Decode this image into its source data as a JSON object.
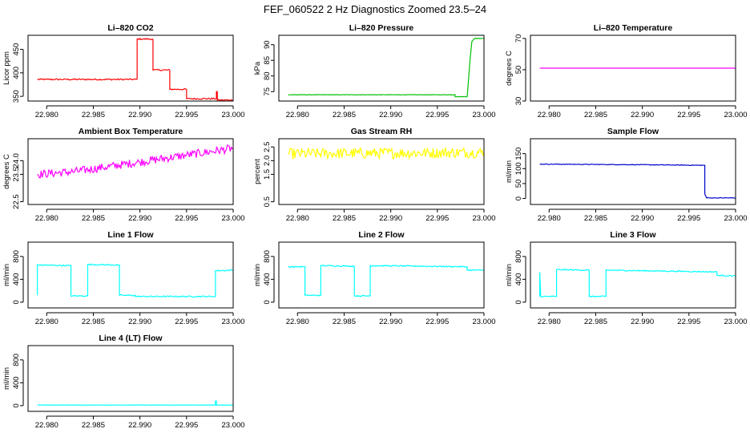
{
  "title": "FEF_060522  2 Hz Diagnostics Zoomed 23.5–24",
  "chart_data": [
    {
      "type": "line",
      "title": "Li–820 CO2",
      "ylabel": "Licor ppm",
      "xlim": [
        22.978,
        23.0
      ],
      "ylim": [
        340,
        480
      ],
      "xticks": [
        22.98,
        22.985,
        22.99,
        22.995,
        23.0
      ],
      "xtick_labels": [
        "22.980",
        "22.985",
        "22.990",
        "22.995",
        "23.000"
      ],
      "yticks": [
        350,
        400,
        450
      ],
      "ytick_labels": [
        "350",
        "400",
        "450"
      ],
      "color": "#ff0000",
      "noise": 1.5,
      "series": [
        {
          "x": [
            22.979,
            22.98,
            22.985,
            22.9897
          ],
          "y": [
            386,
            386,
            386,
            386
          ]
        },
        {
          "x": [
            22.9897,
            22.9897,
            22.9914
          ],
          "y": [
            386,
            472,
            472
          ]
        },
        {
          "x": [
            22.9914,
            22.9914,
            22.9932
          ],
          "y": [
            472,
            406,
            406
          ]
        },
        {
          "x": [
            22.9932,
            22.9932,
            22.995
          ],
          "y": [
            406,
            365,
            365
          ]
        },
        {
          "x": [
            22.995,
            22.995,
            22.9982,
            22.9982,
            22.9983,
            22.9983,
            23.0
          ],
          "y": [
            365,
            345,
            345,
            360,
            360,
            342,
            342
          ]
        }
      ]
    },
    {
      "type": "line",
      "title": "Li–820 Pressure",
      "ylabel": "kPa",
      "xlim": [
        22.978,
        23.0
      ],
      "ylim": [
        72,
        93
      ],
      "xticks": [
        22.98,
        22.985,
        22.99,
        22.995,
        23.0
      ],
      "xtick_labels": [
        "22.980",
        "22.985",
        "22.990",
        "22.995",
        "23.000"
      ],
      "yticks": [
        75,
        80,
        85,
        90
      ],
      "ytick_labels": [
        "75",
        "80",
        "85",
        "90"
      ],
      "color": "#00c000",
      "noise": 0.05,
      "series": [
        {
          "x": [
            22.979,
            22.9969,
            22.9969,
            22.9982,
            22.9985,
            22.9987,
            22.999,
            23.0
          ],
          "y": [
            74,
            74,
            73.4,
            73.4,
            85,
            91,
            92,
            92
          ]
        }
      ]
    },
    {
      "type": "line",
      "title": "Li–820 Temperature",
      "ylabel": "degrees C",
      "xlim": [
        22.978,
        23.0
      ],
      "ylim": [
        30,
        72
      ],
      "xticks": [
        22.98,
        22.985,
        22.99,
        22.995,
        23.0
      ],
      "xtick_labels": [
        "22.980",
        "22.985",
        "22.990",
        "22.995",
        "23.000"
      ],
      "yticks": [
        30,
        50,
        70
      ],
      "ytick_labels": [
        "30",
        "50",
        "70"
      ],
      "color": "#ff00ff",
      "noise": 0,
      "series": [
        {
          "x": [
            22.979,
            23.0
          ],
          "y": [
            51,
            51
          ]
        }
      ]
    },
    {
      "type": "line",
      "title": "Ambient Box Temperature",
      "ylabel": "degrees C",
      "xlim": [
        22.978,
        23.0
      ],
      "ylim": [
        22.4,
        24.8
      ],
      "xticks": [
        22.98,
        22.985,
        22.99,
        22.995,
        23.0
      ],
      "xtick_labels": [
        "22.980",
        "22.985",
        "22.990",
        "22.995",
        "23.000"
      ],
      "yticks": [
        22.5,
        23.5,
        24.0
      ],
      "ytick_labels": [
        "22.5",
        "23.5",
        "24.0"
      ],
      "color": "#ff00ff",
      "noise": 0.15,
      "series": [
        {
          "x": [
            22.979,
            22.983,
            22.986,
            22.99,
            22.995,
            23.0
          ],
          "y": [
            23.5,
            23.6,
            23.75,
            23.95,
            24.2,
            24.45
          ]
        }
      ]
    },
    {
      "type": "line",
      "title": "Gas Stream RH",
      "ylabel": "percent",
      "xlim": [
        22.978,
        23.0
      ],
      "ylim": [
        0.4,
        2.8
      ],
      "xticks": [
        22.98,
        22.985,
        22.99,
        22.995,
        23.0
      ],
      "xtick_labels": [
        "22.980",
        "22.985",
        "22.990",
        "22.995",
        "23.000"
      ],
      "yticks": [
        0.5,
        1.5,
        2.0,
        2.5
      ],
      "ytick_labels": [
        "0.5",
        "1.5",
        "2.0",
        "2.5"
      ],
      "color": "#ffff00",
      "noise": 0.2,
      "series": [
        {
          "x": [
            22.979,
            23.0
          ],
          "y": [
            2.25,
            2.3
          ]
        }
      ]
    },
    {
      "type": "line",
      "title": "Sample Flow",
      "ylabel": "ml/min",
      "xlim": [
        22.978,
        23.0
      ],
      "ylim": [
        -20,
        200
      ],
      "xticks": [
        22.98,
        22.985,
        22.99,
        22.995,
        23.0
      ],
      "xtick_labels": [
        "22.980",
        "22.985",
        "22.990",
        "22.995",
        "23.000"
      ],
      "yticks": [
        0,
        50,
        100,
        150
      ],
      "ytick_labels": [
        "0",
        "50",
        "100",
        "150"
      ],
      "color": "#0000cc",
      "noise": 1,
      "series": [
        {
          "x": [
            22.979,
            22.99,
            22.9967,
            22.9967,
            22.9969,
            23.0
          ],
          "y": [
            115,
            113,
            111,
            15,
            2,
            2
          ]
        }
      ]
    },
    {
      "type": "line",
      "title": "Line 1 Flow",
      "ylabel": "ml/min",
      "xlim": [
        22.978,
        23.0
      ],
      "ylim": [
        -100,
        1050
      ],
      "xticks": [
        22.98,
        22.985,
        22.99,
        22.995,
        23.0
      ],
      "xtick_labels": [
        "22.980",
        "22.985",
        "22.990",
        "22.995",
        "23.000"
      ],
      "yticks": [
        0,
        400,
        800
      ],
      "ytick_labels": [
        "0",
        "400",
        "800"
      ],
      "color": "#00ffff",
      "noise": 10,
      "series": [
        {
          "x": [
            22.979,
            22.979,
            22.9826,
            22.9826,
            22.9844,
            22.9844,
            22.9878,
            22.9878,
            22.9895,
            22.9895,
            22.9981,
            22.9981,
            23.0
          ],
          "y": [
            120,
            650,
            640,
            110,
            110,
            660,
            650,
            120,
            120,
            100,
            100,
            550,
            560
          ]
        }
      ]
    },
    {
      "type": "line",
      "title": "Line 2 Flow",
      "ylabel": "ml/min",
      "xlim": [
        22.978,
        23.0
      ],
      "ylim": [
        -100,
        1050
      ],
      "xticks": [
        22.98,
        22.985,
        22.99,
        22.995,
        23.0
      ],
      "xtick_labels": [
        "22.980",
        "22.985",
        "22.990",
        "22.995",
        "23.000"
      ],
      "yticks": [
        0,
        400,
        800
      ],
      "ytick_labels": [
        "0",
        "400",
        "800"
      ],
      "color": "#00ffff",
      "noise": 10,
      "series": [
        {
          "x": [
            22.979,
            22.9808,
            22.9808,
            22.9825,
            22.9825,
            22.9861,
            22.9861,
            22.9878,
            22.9878,
            22.9982,
            22.9982,
            23.0
          ],
          "y": [
            620,
            620,
            120,
            120,
            640,
            630,
            110,
            110,
            640,
            620,
            560,
            560
          ]
        }
      ]
    },
    {
      "type": "line",
      "title": "Line 3 Flow",
      "ylabel": "ml/min",
      "xlim": [
        22.978,
        23.0
      ],
      "ylim": [
        -100,
        1050
      ],
      "xticks": [
        22.98,
        22.985,
        22.99,
        22.995,
        23.0
      ],
      "xtick_labels": [
        "22.980",
        "22.985",
        "22.990",
        "22.995",
        "23.000"
      ],
      "yticks": [
        0,
        400,
        800
      ],
      "ytick_labels": [
        "0",
        "400",
        "800"
      ],
      "color": "#00ffff",
      "noise": 10,
      "series": [
        {
          "x": [
            22.979,
            22.979,
            22.9791,
            22.9808,
            22.9808,
            22.9843,
            22.9843,
            22.9861,
            22.9861,
            22.998,
            22.998,
            23.0
          ],
          "y": [
            100,
            520,
            100,
            100,
            570,
            560,
            100,
            100,
            560,
            530,
            470,
            460
          ]
        }
      ]
    },
    {
      "type": "line",
      "title": "Line 4 (LT) Flow",
      "ylabel": "ml/min",
      "xlim": [
        22.978,
        23.0
      ],
      "ylim": [
        -100,
        1050
      ],
      "xticks": [
        22.98,
        22.985,
        22.99,
        22.995,
        23.0
      ],
      "xtick_labels": [
        "22.980",
        "22.985",
        "22.990",
        "22.995",
        "23.000"
      ],
      "yticks": [
        0,
        400,
        800
      ],
      "ytick_labels": [
        "0",
        "400",
        "800"
      ],
      "color": "#00ffff",
      "noise": 2,
      "series": [
        {
          "x": [
            22.979,
            22.9981,
            22.9981,
            22.9982,
            22.9982,
            23.0
          ],
          "y": [
            10,
            10,
            80,
            80,
            10,
            10
          ]
        }
      ]
    }
  ]
}
